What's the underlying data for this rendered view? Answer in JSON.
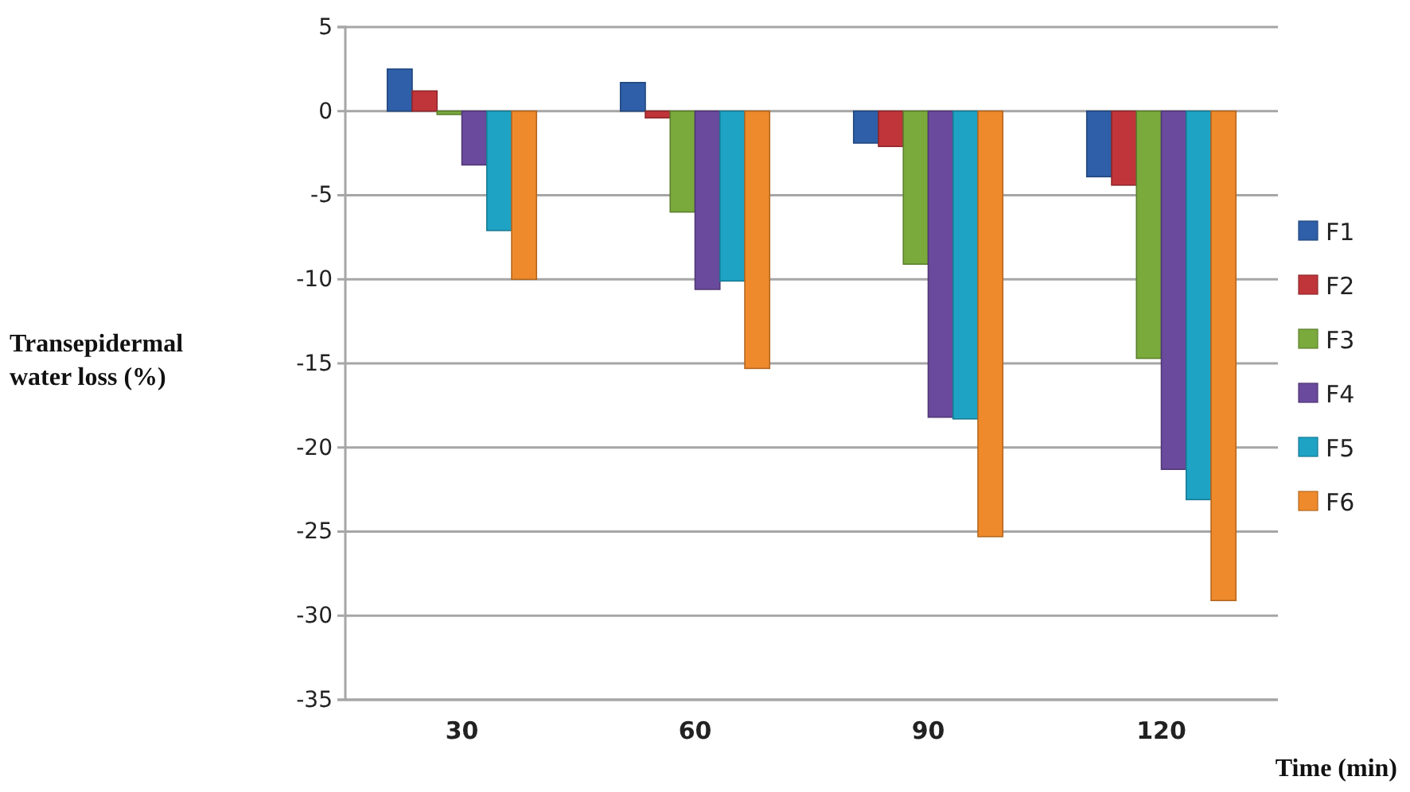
{
  "chart_data": {
    "type": "bar",
    "xlabel": "Time (min)",
    "ylabel": "Transepidermal water loss (%)",
    "categories": [
      "30",
      "60",
      "90",
      "120"
    ],
    "series": [
      {
        "name": "F1",
        "color": "#2e5fa8",
        "values": [
          2.5,
          1.7,
          -1.9,
          -3.9
        ]
      },
      {
        "name": "F2",
        "color": "#c0353a",
        "values": [
          1.2,
          -0.4,
          -2.1,
          -4.4
        ]
      },
      {
        "name": "F3",
        "color": "#7aaa3c",
        "values": [
          -0.2,
          -6.0,
          -9.1,
          -14.7
        ]
      },
      {
        "name": "F4",
        "color": "#6a4a9c",
        "values": [
          -3.2,
          -10.6,
          -18.2,
          -21.3
        ]
      },
      {
        "name": "F5",
        "color": "#1fa3c4",
        "values": [
          -7.1,
          -10.1,
          -18.3,
          -23.1
        ]
      },
      {
        "name": "F6",
        "color": "#ef8a2c",
        "values": [
          -10.0,
          -15.3,
          -25.3,
          -29.1
        ]
      }
    ],
    "ylim": [
      -35,
      5
    ],
    "yticks": [
      -35,
      -30,
      -25,
      -20,
      -15,
      -10,
      -5,
      0,
      5
    ],
    "grid": "y",
    "legend": "right"
  }
}
